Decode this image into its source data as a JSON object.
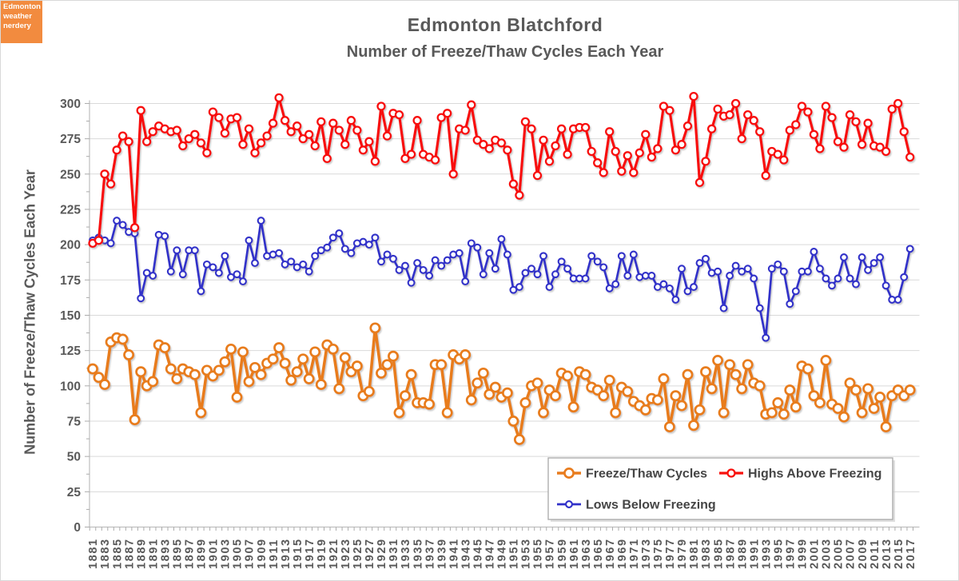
{
  "logo": {
    "lines": [
      "Edmonton",
      "weather",
      "nerdery"
    ],
    "bg_color": "#F28B3F",
    "text_color": "#FFFFFF"
  },
  "header": {
    "title": "Edmonton Blatchford",
    "subtitle": "Number of Freeze/Thaw Cycles Each Year"
  },
  "colors": {
    "title_text": "#595959",
    "axis_text": "#595959",
    "grid_line": "#D9D9D9",
    "axis_line": "#BFBFBF",
    "tick_mark": "#ABABAB",
    "legend_border": "#A8A8A8",
    "legend_text": "#454545",
    "outer_border": "#D9D9D9"
  },
  "chart_data": {
    "type": "line",
    "title": "Edmonton Blatchford",
    "subtitle": "Number of Freeze/Thaw Cycles Each Year",
    "ylabel": "Number of Freeze/Thaw Cycles Each Year",
    "xlabel": "",
    "ylim": [
      0,
      300
    ],
    "ytick_step": 25,
    "ytick_labels": [
      "0",
      "25",
      "50",
      "75",
      "100",
      "125",
      "150",
      "175",
      "200",
      "225",
      "250",
      "275",
      "300"
    ],
    "x_start_year": 1881,
    "x_end_year": 2017,
    "xtick_labels": [
      "1881",
      "1883",
      "1885",
      "1887",
      "1889",
      "1891",
      "1893",
      "1895",
      "1897",
      "1899",
      "1901",
      "1903",
      "1905",
      "1907",
      "1909",
      "1911",
      "1913",
      "1915",
      "1917",
      "1919",
      "1921",
      "1923",
      "1925",
      "1927",
      "1929",
      "1931",
      "1933",
      "1935",
      "1937",
      "1939",
      "1941",
      "1943",
      "1945",
      "1947",
      "1949",
      "1951",
      "1953",
      "1955",
      "1957",
      "1959",
      "1961",
      "1963",
      "1965",
      "1967",
      "1969",
      "1971",
      "1973",
      "1975",
      "1977",
      "1979",
      "1981",
      "1983",
      "1985",
      "1987",
      "1989",
      "1991",
      "1993",
      "1995",
      "1997",
      "1999",
      "2001",
      "2003",
      "2005",
      "2007",
      "2009",
      "2011",
      "2013",
      "2015",
      "2017"
    ],
    "grid": "horizontal",
    "legend_position": "inside-bottom-right",
    "series": [
      {
        "name": "Freeze/Thaw Cycles",
        "color": "#E87C1E",
        "line_width": 3.6,
        "marker_radius": 5.6,
        "marker_stroke": 2.7,
        "values": [
          112,
          106,
          101,
          131,
          134,
          133,
          122,
          76,
          110,
          100,
          103,
          129,
          127,
          112,
          105,
          112,
          110,
          108,
          81,
          111,
          107,
          111,
          117,
          126,
          92,
          124,
          103,
          113,
          108,
          116,
          119,
          127,
          116,
          104,
          110,
          119,
          105,
          124,
          101,
          129,
          126,
          98,
          120,
          110,
          114,
          93,
          96,
          141,
          109,
          115,
          121,
          81,
          93,
          108,
          88,
          88,
          87,
          115,
          115,
          81,
          122,
          119,
          122,
          90,
          102,
          109,
          94,
          99,
          92,
          95,
          75,
          62,
          88,
          100,
          102,
          81,
          97,
          93,
          109,
          107,
          85,
          110,
          108,
          99,
          97,
          93,
          104,
          81,
          99,
          96,
          89,
          86,
          83,
          91,
          90,
          105,
          71,
          93,
          86,
          108,
          72,
          83,
          110,
          98,
          118,
          81,
          115,
          108,
          98,
          115,
          102,
          100,
          80,
          81,
          88,
          80,
          97,
          85,
          114,
          112,
          93,
          88,
          118,
          87,
          84,
          78,
          102,
          97,
          81,
          98,
          84,
          92,
          71,
          93,
          97,
          93,
          97
        ]
      },
      {
        "name": "Highs Above Freezing",
        "color": "#F8100C",
        "line_width": 3.2,
        "marker_radius": 4.5,
        "marker_stroke": 2.3,
        "values": [
          201,
          203,
          250,
          243,
          267,
          277,
          273,
          212,
          295,
          273,
          280,
          284,
          282,
          280,
          281,
          270,
          275,
          278,
          272,
          265,
          294,
          290,
          279,
          289,
          290,
          271,
          282,
          265,
          272,
          277,
          286,
          304,
          288,
          280,
          284,
          275,
          278,
          270,
          287,
          261,
          286,
          281,
          271,
          288,
          281,
          267,
          273,
          259,
          298,
          277,
          293,
          292,
          261,
          264,
          288,
          264,
          262,
          260,
          290,
          293,
          250,
          282,
          281,
          299,
          274,
          271,
          268,
          274,
          272,
          267,
          243,
          235,
          287,
          282,
          249,
          274,
          259,
          270,
          282,
          264,
          282,
          283,
          283,
          266,
          258,
          251,
          280,
          266,
          252,
          263,
          251,
          265,
          278,
          262,
          268,
          298,
          295,
          267,
          271,
          284,
          305,
          244,
          259,
          282,
          296,
          291,
          292,
          300,
          275,
          292,
          288,
          280,
          249,
          266,
          264,
          260,
          281,
          285,
          298,
          294,
          278,
          268,
          298,
          290,
          273,
          269,
          292,
          287,
          271,
          286,
          270,
          269,
          266,
          296,
          300,
          280,
          262
        ]
      },
      {
        "name": "Lows Below Freezing",
        "color": "#3131C9",
        "line_width": 2.7,
        "marker_radius": 3.9,
        "marker_stroke": 2.1,
        "values": [
          203,
          205,
          203,
          201,
          217,
          214,
          209,
          208,
          162,
          180,
          178,
          207,
          206,
          181,
          196,
          179,
          196,
          196,
          167,
          186,
          184,
          180,
          192,
          177,
          179,
          174,
          203,
          187,
          217,
          192,
          193,
          194,
          186,
          188,
          184,
          186,
          181,
          192,
          196,
          198,
          205,
          208,
          197,
          194,
          201,
          202,
          200,
          205,
          188,
          193,
          190,
          182,
          185,
          173,
          187,
          182,
          178,
          189,
          185,
          189,
          193,
          194,
          174,
          201,
          198,
          179,
          194,
          183,
          204,
          193,
          168,
          170,
          180,
          183,
          179,
          192,
          170,
          179,
          188,
          183,
          176,
          176,
          176,
          192,
          188,
          184,
          169,
          172,
          192,
          178,
          193,
          177,
          178,
          178,
          170,
          172,
          169,
          161,
          183,
          167,
          170,
          187,
          190,
          180,
          181,
          155,
          178,
          185,
          181,
          183,
          176,
          155,
          134,
          183,
          186,
          181,
          158,
          167,
          181,
          181,
          195,
          183,
          176,
          171,
          176,
          191,
          176,
          172,
          191,
          182,
          187,
          191,
          171,
          161,
          161,
          177,
          197
        ]
      }
    ]
  }
}
